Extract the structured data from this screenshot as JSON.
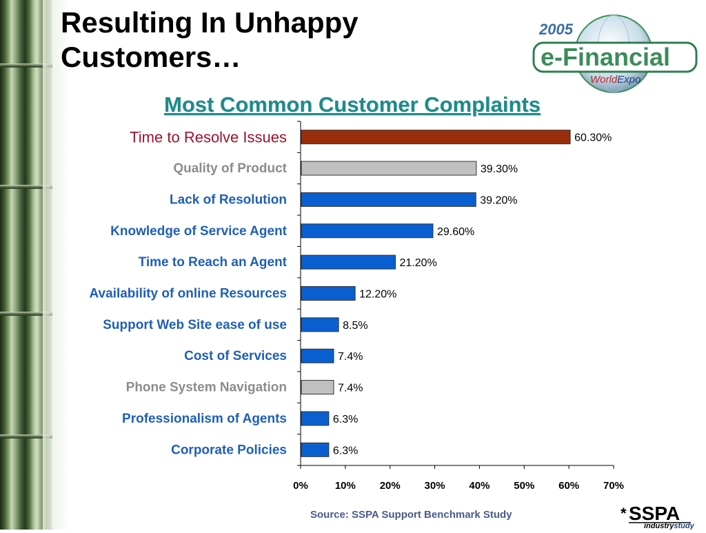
{
  "slide": {
    "title": "Resulting In Unhappy Customers…",
    "source": "Source:  SSPA Support Benchmark Study"
  },
  "logo": {
    "year": "2005",
    "name": "e-Financial",
    "sub": "WorldExpo",
    "sub_world": "World",
    "sub_expo": "Expo"
  },
  "sspa_logo": {
    "asterisk": "*",
    "name": "SSPA",
    "tagline_a": "industry",
    "tagline_b": "study"
  },
  "chart_data": {
    "type": "bar",
    "orientation": "horizontal",
    "title": "Most Common Customer Complaints",
    "xlabel": "",
    "ylabel": "",
    "xlim": [
      0,
      70
    ],
    "x_ticks": [
      "0%",
      "10%",
      "20%",
      "30%",
      "40%",
      "50%",
      "60%",
      "70%"
    ],
    "grid": false,
    "categories": [
      "Time to Resolve Issues",
      "Quality of Product",
      "Lack of Resolution",
      "Knowledge of Service Agent",
      "Time to Reach an Agent",
      "Availability of online Resources",
      "Support Web Site ease of use",
      "Cost of Services",
      "Phone System Navigation",
      "Professionalism of Agents",
      "Corporate Policies"
    ],
    "values": [
      60.3,
      39.3,
      39.2,
      29.6,
      21.2,
      12.2,
      8.5,
      7.4,
      7.4,
      6.3,
      6.3
    ],
    "data_labels": [
      "60.30%",
      "39.30%",
      "39.20%",
      "29.60%",
      "21.20%",
      "12.20%",
      "8.5%",
      "7.4%",
      "7.4%",
      "6.3%",
      "6.3%"
    ],
    "bar_colors": [
      "#9a2e0c",
      "#c0c0c0",
      "#0a5fd0",
      "#0a5fd0",
      "#0a5fd0",
      "#0a5fd0",
      "#0a5fd0",
      "#0a5fd0",
      "#c0c0c0",
      "#0a5fd0",
      "#0a5fd0"
    ],
    "label_colors": [
      "#a0102a",
      "#8c8c8c",
      "#1f5fb8",
      "#1f5fb8",
      "#1f5fb8",
      "#1f5fb8",
      "#1f5fb8",
      "#1f5fb8",
      "#8c8c8c",
      "#1f5fb8",
      "#1f5fb8"
    ]
  }
}
